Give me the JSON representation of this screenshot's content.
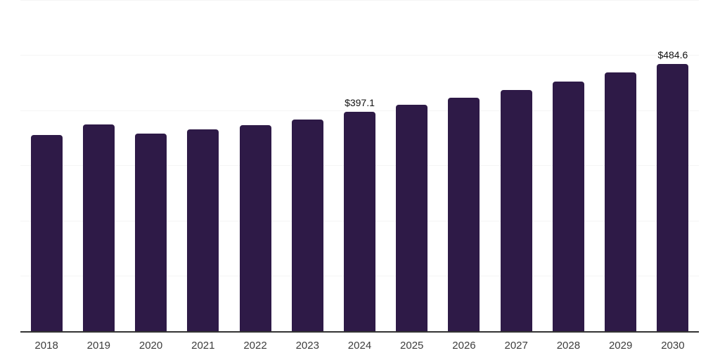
{
  "chart": {
    "colors": {
      "bar": "#2e1a47",
      "grid": "#f5f5f5",
      "axis": "#333333",
      "tick_text": "#3d3d3d",
      "label_text": "#111111",
      "background": "#ffffff"
    }
  },
  "chart_data": {
    "type": "bar",
    "title": "",
    "xlabel": "",
    "ylabel": "",
    "categories": [
      "2018",
      "2019",
      "2020",
      "2021",
      "2022",
      "2023",
      "2024",
      "2025",
      "2026",
      "2027",
      "2028",
      "2029",
      "2030"
    ],
    "values": [
      356,
      375,
      358,
      365,
      373,
      384,
      397.1,
      410,
      423,
      437,
      452,
      469,
      484.6
    ],
    "data_labels": {
      "2024": "$397.1",
      "2030": "$484.6"
    },
    "ylim": [
      0,
      600
    ],
    "gridline_values": [
      0,
      100,
      200,
      300,
      400,
      500,
      600
    ],
    "grid": "horizontal-only",
    "y_axis_labels_visible": false,
    "legend_position": "none"
  }
}
